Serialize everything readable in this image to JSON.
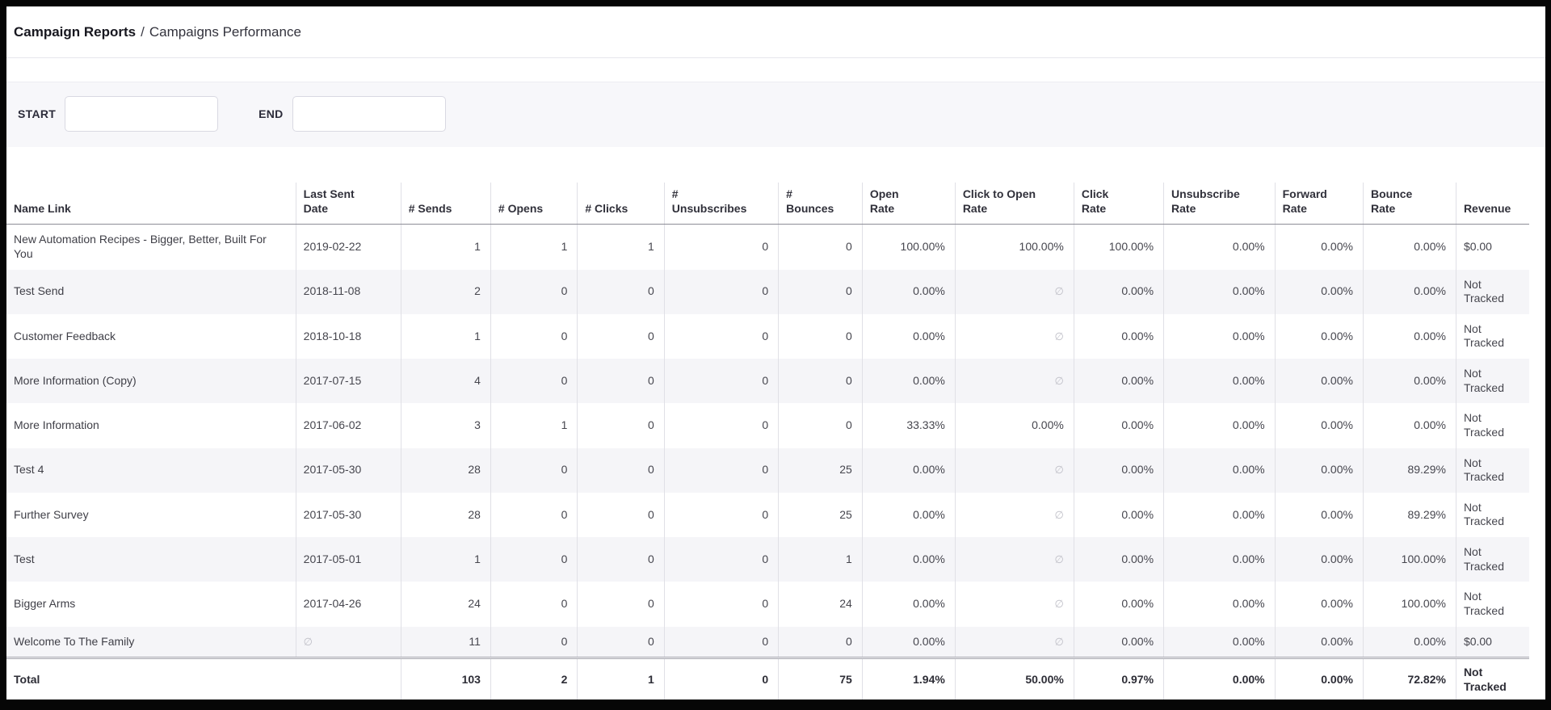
{
  "breadcrumb": {
    "section": "Campaign Reports",
    "separator": "/",
    "page": "Campaigns Performance"
  },
  "filters": {
    "start": {
      "label": "START",
      "value": ""
    },
    "end": {
      "label": "END",
      "value": ""
    }
  },
  "table": {
    "empty_marker": "∅",
    "columns": [
      {
        "id": "name",
        "label": "Name Link",
        "align": "left"
      },
      {
        "id": "last_sent_date",
        "label": "Last Sent Date",
        "align": "left"
      },
      {
        "id": "sends",
        "label": "# Sends",
        "align": "right"
      },
      {
        "id": "opens",
        "label": "# Opens",
        "align": "right"
      },
      {
        "id": "clicks",
        "label": "# Clicks",
        "align": "right"
      },
      {
        "id": "unsubscribes",
        "label": "# Unsubscribes",
        "align": "right"
      },
      {
        "id": "bounces",
        "label": "# Bounces",
        "align": "right"
      },
      {
        "id": "open_rate",
        "label": "Open Rate",
        "align": "right"
      },
      {
        "id": "click_to_open_rate",
        "label": "Click to Open Rate",
        "align": "right"
      },
      {
        "id": "click_rate",
        "label": "Click Rate",
        "align": "right"
      },
      {
        "id": "unsubscribe_rate",
        "label": "Unsubscribe Rate",
        "align": "right"
      },
      {
        "id": "forward_rate",
        "label": "Forward Rate",
        "align": "right"
      },
      {
        "id": "bounce_rate",
        "label": "Bounce Rate",
        "align": "right"
      },
      {
        "id": "revenue",
        "label": "Revenue",
        "align": "left"
      }
    ],
    "rows": [
      {
        "name": "New Automation Recipes - Bigger, Better, Built For You",
        "last_sent_date": "2019-02-22",
        "sends": "1",
        "opens": "1",
        "clicks": "1",
        "unsubscribes": "0",
        "bounces": "0",
        "open_rate": "100.00%",
        "click_to_open_rate": "100.00%",
        "click_rate": "100.00%",
        "unsubscribe_rate": "0.00%",
        "forward_rate": "0.00%",
        "bounce_rate": "0.00%",
        "revenue": "$0.00"
      },
      {
        "name": "Test Send",
        "last_sent_date": "2018-11-08",
        "sends": "2",
        "opens": "0",
        "clicks": "0",
        "unsubscribes": "0",
        "bounces": "0",
        "open_rate": "0.00%",
        "click_to_open_rate": "∅",
        "click_rate": "0.00%",
        "unsubscribe_rate": "0.00%",
        "forward_rate": "0.00%",
        "bounce_rate": "0.00%",
        "revenue": "Not Tracked"
      },
      {
        "name": "Customer Feedback",
        "last_sent_date": "2018-10-18",
        "sends": "1",
        "opens": "0",
        "clicks": "0",
        "unsubscribes": "0",
        "bounces": "0",
        "open_rate": "0.00%",
        "click_to_open_rate": "∅",
        "click_rate": "0.00%",
        "unsubscribe_rate": "0.00%",
        "forward_rate": "0.00%",
        "bounce_rate": "0.00%",
        "revenue": "Not Tracked"
      },
      {
        "name": "More Information (Copy)",
        "last_sent_date": "2017-07-15",
        "sends": "4",
        "opens": "0",
        "clicks": "0",
        "unsubscribes": "0",
        "bounces": "0",
        "open_rate": "0.00%",
        "click_to_open_rate": "∅",
        "click_rate": "0.00%",
        "unsubscribe_rate": "0.00%",
        "forward_rate": "0.00%",
        "bounce_rate": "0.00%",
        "revenue": "Not Tracked"
      },
      {
        "name": "More Information",
        "last_sent_date": "2017-06-02",
        "sends": "3",
        "opens": "1",
        "clicks": "0",
        "unsubscribes": "0",
        "bounces": "0",
        "open_rate": "33.33%",
        "click_to_open_rate": "0.00%",
        "click_rate": "0.00%",
        "unsubscribe_rate": "0.00%",
        "forward_rate": "0.00%",
        "bounce_rate": "0.00%",
        "revenue": "Not Tracked"
      },
      {
        "name": "Test 4",
        "last_sent_date": "2017-05-30",
        "sends": "28",
        "opens": "0",
        "clicks": "0",
        "unsubscribes": "0",
        "bounces": "25",
        "open_rate": "0.00%",
        "click_to_open_rate": "∅",
        "click_rate": "0.00%",
        "unsubscribe_rate": "0.00%",
        "forward_rate": "0.00%",
        "bounce_rate": "89.29%",
        "revenue": "Not Tracked"
      },
      {
        "name": "Further Survey",
        "last_sent_date": "2017-05-30",
        "sends": "28",
        "opens": "0",
        "clicks": "0",
        "unsubscribes": "0",
        "bounces": "25",
        "open_rate": "0.00%",
        "click_to_open_rate": "∅",
        "click_rate": "0.00%",
        "unsubscribe_rate": "0.00%",
        "forward_rate": "0.00%",
        "bounce_rate": "89.29%",
        "revenue": "Not Tracked"
      },
      {
        "name": "Test",
        "last_sent_date": "2017-05-01",
        "sends": "1",
        "opens": "0",
        "clicks": "0",
        "unsubscribes": "0",
        "bounces": "1",
        "open_rate": "0.00%",
        "click_to_open_rate": "∅",
        "click_rate": "0.00%",
        "unsubscribe_rate": "0.00%",
        "forward_rate": "0.00%",
        "bounce_rate": "100.00%",
        "revenue": "Not Tracked"
      },
      {
        "name": "Bigger Arms",
        "last_sent_date": "2017-04-26",
        "sends": "24",
        "opens": "0",
        "clicks": "0",
        "unsubscribes": "0",
        "bounces": "24",
        "open_rate": "0.00%",
        "click_to_open_rate": "∅",
        "click_rate": "0.00%",
        "unsubscribe_rate": "0.00%",
        "forward_rate": "0.00%",
        "bounce_rate": "100.00%",
        "revenue": "Not Tracked"
      },
      {
        "name": "Welcome To The Family",
        "last_sent_date": "∅",
        "sends": "11",
        "opens": "0",
        "clicks": "0",
        "unsubscribes": "0",
        "bounces": "0",
        "open_rate": "0.00%",
        "click_to_open_rate": "∅",
        "click_rate": "0.00%",
        "unsubscribe_rate": "0.00%",
        "forward_rate": "0.00%",
        "bounce_rate": "0.00%",
        "revenue": "$0.00"
      }
    ],
    "total": {
      "label": "Total",
      "sends": "103",
      "opens": "2",
      "clicks": "1",
      "unsubscribes": "0",
      "bounces": "75",
      "open_rate": "1.94%",
      "click_to_open_rate": "50.00%",
      "click_rate": "0.97%",
      "unsubscribe_rate": "0.00%",
      "forward_rate": "0.00%",
      "bounce_rate": "72.82%",
      "revenue": "Not Tracked"
    }
  }
}
